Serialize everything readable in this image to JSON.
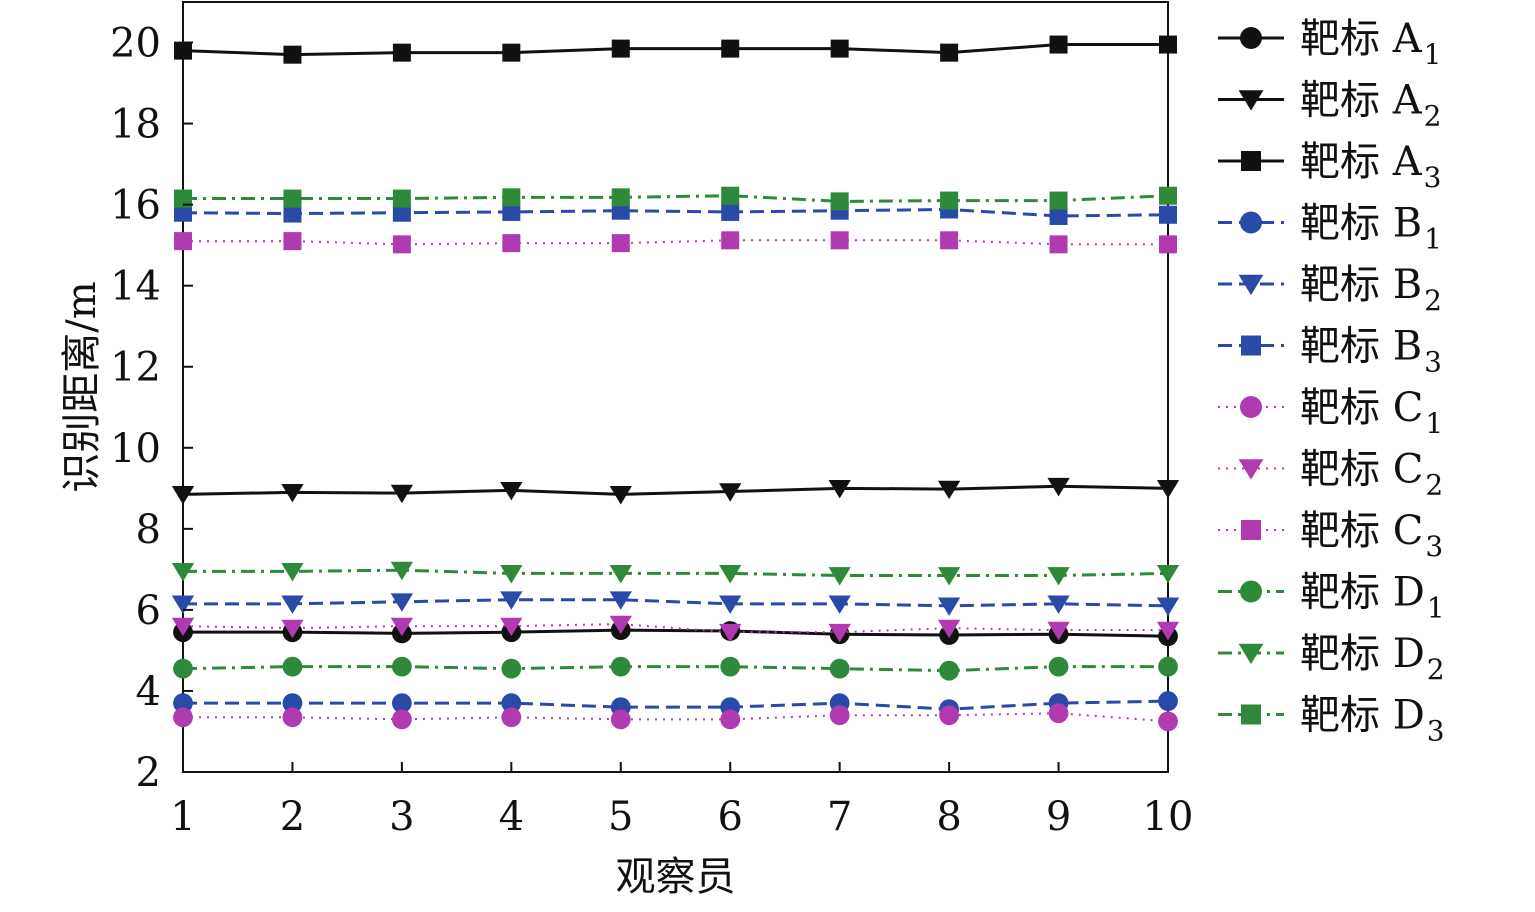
{
  "chart_data": {
    "type": "line",
    "title": "",
    "xlabel": "观察员",
    "ylabel": "识别距离/m",
    "x": [
      1,
      2,
      3,
      4,
      5,
      6,
      7,
      8,
      9,
      10
    ],
    "xlim": [
      1,
      10
    ],
    "ylim": [
      2,
      21
    ],
    "yticks": [
      2,
      4,
      6,
      8,
      10,
      12,
      14,
      16,
      18,
      20
    ],
    "grid": false,
    "legend_position": "right",
    "series": [
      {
        "name": "靶标 A",
        "sub": "1",
        "color": "#111111",
        "dash": "solid",
        "marker": "circle",
        "values": [
          5.45,
          5.45,
          5.42,
          5.45,
          5.5,
          5.48,
          5.4,
          5.38,
          5.4,
          5.35
        ]
      },
      {
        "name": "靶标 A",
        "sub": "2",
        "color": "#111111",
        "dash": "solid",
        "marker": "triangle",
        "values": [
          8.85,
          8.9,
          8.88,
          8.95,
          8.85,
          8.92,
          9.0,
          8.98,
          9.05,
          9.0
        ]
      },
      {
        "name": "靶标 A",
        "sub": "3",
        "color": "#111111",
        "dash": "solid",
        "marker": "square",
        "values": [
          19.8,
          19.7,
          19.75,
          19.75,
          19.85,
          19.85,
          19.85,
          19.75,
          19.95,
          19.95
        ]
      },
      {
        "name": "靶标 B",
        "sub": "1",
        "color": "#2a4aa8",
        "dash": "dashed",
        "marker": "circle",
        "values": [
          3.7,
          3.7,
          3.7,
          3.7,
          3.6,
          3.6,
          3.7,
          3.55,
          3.7,
          3.75
        ]
      },
      {
        "name": "靶标 B",
        "sub": "2",
        "color": "#2a4aa8",
        "dash": "dashed",
        "marker": "triangle",
        "values": [
          6.15,
          6.15,
          6.2,
          6.25,
          6.25,
          6.15,
          6.15,
          6.1,
          6.15,
          6.1
        ]
      },
      {
        "name": "靶标 B",
        "sub": "3",
        "color": "#2a4aa8",
        "dash": "dashed",
        "marker": "square",
        "values": [
          15.8,
          15.78,
          15.8,
          15.82,
          15.85,
          15.82,
          15.85,
          15.88,
          15.72,
          15.75
        ]
      },
      {
        "name": "靶标 C",
        "sub": "1",
        "color": "#b03ab0",
        "dash": "dotted",
        "marker": "circle",
        "values": [
          3.35,
          3.35,
          3.3,
          3.35,
          3.3,
          3.3,
          3.4,
          3.4,
          3.45,
          3.25
        ]
      },
      {
        "name": "靶标 C",
        "sub": "2",
        "color": "#b03ab0",
        "dash": "dotted",
        "marker": "triangle",
        "values": [
          5.6,
          5.55,
          5.6,
          5.6,
          5.65,
          5.45,
          5.45,
          5.55,
          5.5,
          5.5
        ]
      },
      {
        "name": "靶标 C",
        "sub": "3",
        "color": "#b03ab0",
        "dash": "dotted",
        "marker": "square",
        "values": [
          15.1,
          15.1,
          15.02,
          15.05,
          15.05,
          15.12,
          15.12,
          15.12,
          15.02,
          15.02
        ]
      },
      {
        "name": "靶标 D",
        "sub": "1",
        "color": "#2e8a3a",
        "dash": "dashdot",
        "marker": "circle",
        "values": [
          4.55,
          4.6,
          4.6,
          4.55,
          4.6,
          4.6,
          4.55,
          4.5,
          4.6,
          4.6
        ]
      },
      {
        "name": "靶标 D",
        "sub": "2",
        "color": "#2e8a3a",
        "dash": "dashdot",
        "marker": "triangle",
        "values": [
          6.95,
          6.95,
          6.98,
          6.9,
          6.9,
          6.9,
          6.85,
          6.85,
          6.85,
          6.9
        ]
      },
      {
        "name": "靶标 D",
        "sub": "3",
        "color": "#2e8a3a",
        "dash": "dashdot",
        "marker": "square",
        "values": [
          16.15,
          16.15,
          16.15,
          16.18,
          16.18,
          16.22,
          16.08,
          16.1,
          16.1,
          16.22
        ]
      }
    ]
  }
}
